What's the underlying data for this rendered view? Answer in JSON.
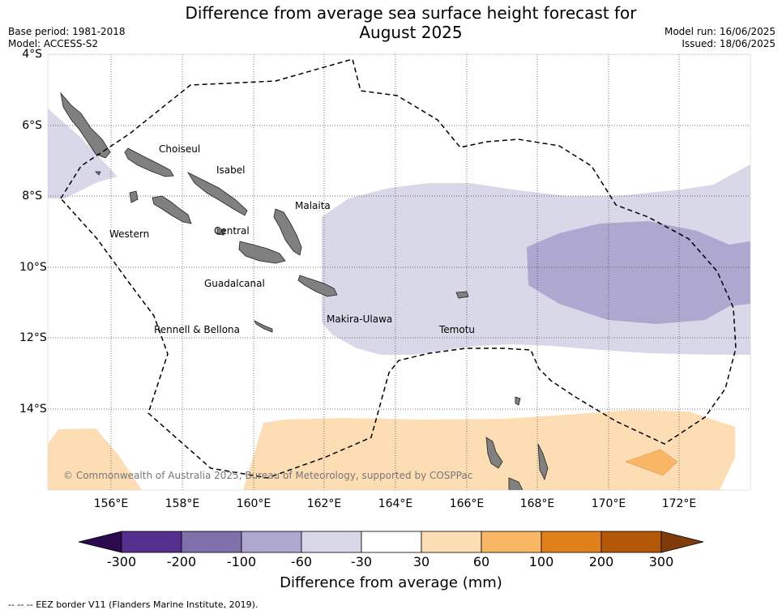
{
  "header": {
    "title_line1": "Difference from average sea surface height forecast for",
    "title_line2": "August 2025",
    "base_period": "Base period: 1981-2018",
    "model": "Model: ACCESS-S2",
    "model_run": "Model run: 16/06/2025",
    "issued": "Issued: 18/06/2025"
  },
  "map": {
    "lat_labels": [
      "4°S",
      "6°S",
      "8°S",
      "10°S",
      "12°S",
      "14°S"
    ],
    "lon_labels": [
      "156°E",
      "158°E",
      "160°E",
      "162°E",
      "164°E",
      "166°E",
      "168°E",
      "170°E",
      "172°E"
    ],
    "provinces": {
      "choiseul": "Choiseul",
      "isabel": "Isabel",
      "malaita": "Malaita",
      "western": "Western",
      "central": "Central",
      "guadalcanal": "Guadalcanal",
      "makira_ulawa": "Makira-Ulawa",
      "temotu": "Temotu",
      "rennell_bellona": "Rennell & Bellona"
    },
    "copyright": "© Commonwealth of Australia 2025, Bureau of Meteorology, supported by COSPPac",
    "land_color": "#808080",
    "eez_border_style": "dashed"
  },
  "colorbar": {
    "tick_labels": [
      "-300",
      "-200",
      "-100",
      "-60",
      "-30",
      "30",
      "60",
      "100",
      "200",
      "300"
    ],
    "segment_colors": [
      "#552f8e",
      "#7f6faa",
      "#aea7cf",
      "#d8d8e9",
      "#ffffff",
      "#fddeb4",
      "#f9b765",
      "#e0801a",
      "#b35806"
    ],
    "under_color": "#2d0a4e",
    "over_color": "#7f3b08",
    "label": "Difference from average (mm)"
  },
  "footnote": "--  --  -- EEZ border V11 (Flanders Marine Institute, 2019)."
}
